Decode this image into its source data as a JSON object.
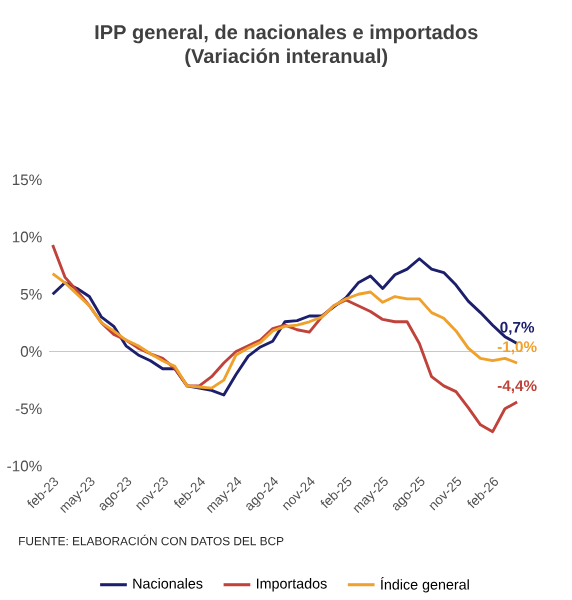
{
  "chart_data": {
    "type": "line",
    "title": "IPP general, de nacionales e importados",
    "subtitle": "(Variación interanual)",
    "categories": [
      "feb-23",
      null,
      null,
      "may-23",
      null,
      null,
      "ago-23",
      null,
      null,
      "nov-23",
      null,
      null,
      "feb-24",
      null,
      null,
      "may-24",
      null,
      null,
      "ago-24",
      null,
      null,
      "nov-24",
      null,
      null,
      "feb-25",
      null,
      null,
      "may-25",
      null,
      null,
      "ago-25",
      null,
      null,
      "nov-25",
      null,
      null,
      "feb-26",
      null,
      null
    ],
    "series": [
      {
        "name": "Nacionales",
        "color": "#1c1f6b",
        "values": [
          5.0,
          6.0,
          5.5,
          4.8,
          3.0,
          2.2,
          0.5,
          -0.3,
          -0.8,
          -1.5,
          -1.5,
          -3.0,
          -3.2,
          -3.4,
          -3.8,
          -2.0,
          -0.4,
          0.4,
          0.9,
          2.6,
          2.7,
          3.1,
          3.1,
          3.9,
          4.7,
          6.0,
          6.6,
          5.5,
          6.7,
          7.2,
          8.1,
          7.2,
          6.9,
          5.8,
          4.4,
          3.4,
          2.3,
          1.3,
          0.7
        ],
        "value_labels": [
          null,
          null,
          null,
          null,
          null,
          null,
          null,
          null,
          null,
          null,
          null,
          null,
          null,
          null,
          null,
          null,
          null,
          null,
          null,
          null,
          null,
          null,
          null,
          null,
          null,
          null,
          null,
          null,
          null,
          null,
          null,
          null,
          null,
          null,
          null,
          null,
          null,
          null,
          "0,7%"
        ]
      },
      {
        "name": "Importados",
        "color": "#c0433b",
        "values": [
          9.3,
          6.5,
          5.3,
          4.0,
          2.5,
          1.5,
          1.0,
          0.3,
          -0.2,
          -0.6,
          -1.5,
          -3.0,
          -3.0,
          -2.2,
          -1.0,
          0.0,
          0.5,
          1.0,
          2.0,
          2.3,
          1.9,
          1.7,
          3.0,
          4.0,
          4.5,
          4.0,
          3.5,
          2.8,
          2.6,
          2.6,
          0.7,
          -2.2,
          -3.0,
          -3.5,
          -4.9,
          -6.4,
          -7.0,
          -5.0,
          -4.4
        ],
        "value_labels": [
          null,
          null,
          null,
          null,
          null,
          null,
          null,
          null,
          null,
          null,
          null,
          null,
          null,
          null,
          null,
          null,
          null,
          null,
          null,
          null,
          null,
          null,
          null,
          null,
          null,
          null,
          null,
          null,
          null,
          null,
          null,
          null,
          null,
          null,
          null,
          null,
          null,
          null,
          "-4,4%"
        ]
      },
      {
        "name": "Índice general",
        "color": "#f0a12b",
        "values": [
          6.8,
          6.0,
          5.0,
          4.0,
          2.5,
          1.8,
          1.0,
          0.5,
          -0.2,
          -0.8,
          -1.3,
          -3.0,
          -3.1,
          -3.2,
          -2.5,
          -0.3,
          0.3,
          0.8,
          1.8,
          2.2,
          2.3,
          2.6,
          3.0,
          4.0,
          4.6,
          5.0,
          5.2,
          4.3,
          4.8,
          4.6,
          4.6,
          3.4,
          2.9,
          1.8,
          0.3,
          -0.6,
          -0.8,
          -0.6,
          -1.0
        ],
        "value_labels": [
          null,
          null,
          null,
          null,
          null,
          null,
          null,
          null,
          null,
          null,
          null,
          null,
          null,
          null,
          null,
          null,
          null,
          null,
          null,
          null,
          null,
          null,
          null,
          null,
          null,
          null,
          null,
          null,
          null,
          null,
          null,
          null,
          null,
          null,
          null,
          null,
          null,
          null,
          "-1,0%"
        ]
      }
    ],
    "ylim": [
      -10,
      15
    ],
    "yticks": [
      {
        "value": -10,
        "label": "-10%"
      },
      {
        "value": -5,
        "label": "-5%"
      },
      {
        "value": 0,
        "label": "0%"
      },
      {
        "value": 5,
        "label": "5%"
      },
      {
        "value": 10,
        "label": "10%"
      },
      {
        "value": 15,
        "label": "15%"
      }
    ],
    "ref_lines": [
      {
        "axis": "y",
        "value": 0,
        "color": "#c8c8c8"
      }
    ],
    "legend": "bottom",
    "marker": "none",
    "annotations": [
      "FUENTE: ELABORACIÓN CON DATOS DEL BCP"
    ]
  }
}
